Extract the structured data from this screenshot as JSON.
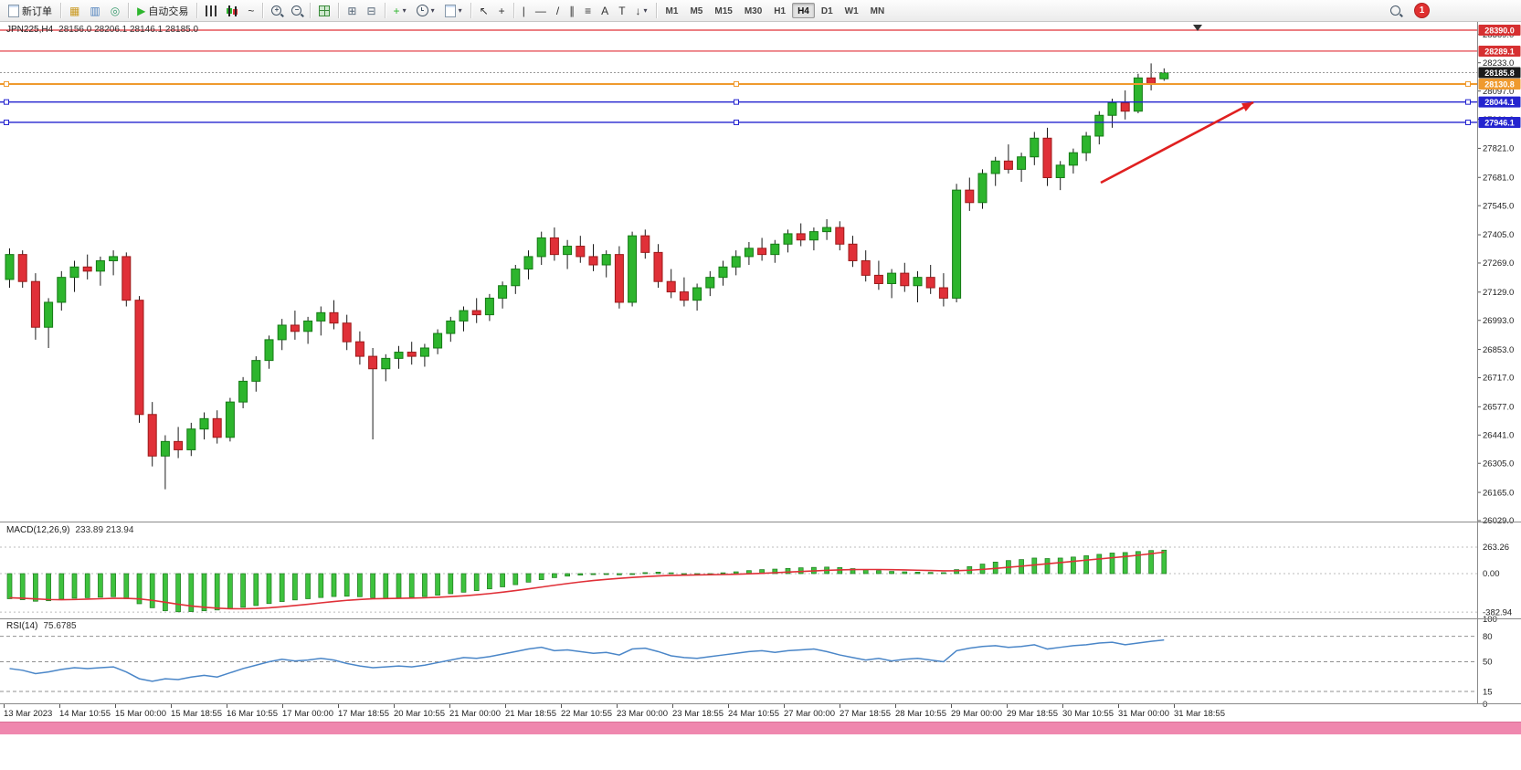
{
  "title": {
    "symbol": "JPN225,H4",
    "ohlc": "28156.0 28206.1 28146.1 28185.0"
  },
  "toolbar": {
    "groups": [
      {
        "items": [
          {
            "name": "new-order-button",
            "icon": "page",
            "label": "新订单"
          }
        ]
      },
      {
        "items": [
          {
            "name": "charts-button",
            "glyph": "▦",
            "color": "#c9981f"
          },
          {
            "name": "profiles-button",
            "glyph": "▥",
            "color": "#4a7ebb"
          },
          {
            "name": "data-window-button",
            "glyph": "◎",
            "color": "#3a9b6e"
          }
        ]
      },
      {
        "items": [
          {
            "name": "autotrading-button",
            "glyph": "▶",
            "color": "#2db52d",
            "label": "自动交易"
          }
        ]
      },
      {
        "items": [
          {
            "name": "bar-chart-button",
            "icon": "bars"
          },
          {
            "name": "candlestick-chart-button",
            "icon": "candles"
          },
          {
            "name": "line-chart-button",
            "glyph": "~",
            "color": "#333"
          }
        ]
      },
      {
        "items": [
          {
            "name": "zoom-in-button",
            "icon": "mag",
            "glyph": "+"
          },
          {
            "name": "zoom-out-button",
            "icon": "mag",
            "glyph": "−"
          }
        ]
      },
      {
        "items": [
          {
            "name": "tile-windows-button",
            "icon": "grid"
          }
        ]
      },
      {
        "items": [
          {
            "name": "auto-scroll-button",
            "glyph": "⊞",
            "color": "#556677"
          },
          {
            "name": "chart-shift-button",
            "glyph": "⊟",
            "color": "#556677"
          }
        ]
      },
      {
        "items": [
          {
            "name": "indicators-button",
            "glyph": "+",
            "color": "#2db52d",
            "caret": true
          },
          {
            "name": "periods-button",
            "icon": "clock",
            "caret": true
          },
          {
            "name": "templates-button",
            "icon": "page",
            "caret": true
          }
        ]
      },
      {
        "items": [
          {
            "name": "cursor-button",
            "glyph": "↖",
            "color": "#333"
          },
          {
            "name": "crosshair-button",
            "glyph": "+",
            "color": "#333"
          }
        ]
      },
      {
        "items": [
          {
            "name": "vertical-line-button",
            "glyph": "|",
            "color": "#333"
          },
          {
            "name": "horizontal-line-button",
            "glyph": "—",
            "color": "#333"
          },
          {
            "name": "trendline-button",
            "glyph": "/",
            "color": "#333"
          },
          {
            "name": "channel-button",
            "glyph": "∥",
            "color": "#333"
          },
          {
            "name": "fibonacci-button",
            "glyph": "≡",
            "color": "#333"
          },
          {
            "name": "text-button",
            "glyph": "A",
            "color": "#333"
          },
          {
            "name": "text-label-button",
            "glyph": "T",
            "color": "#333"
          },
          {
            "name": "arrows-button",
            "glyph": "↓",
            "color": "#333",
            "caret": true
          }
        ]
      }
    ],
    "timeframes": {
      "options": [
        "M1",
        "M5",
        "M15",
        "M30",
        "H1",
        "H4",
        "D1",
        "W1",
        "MN"
      ],
      "active": "H4"
    },
    "notification_count": "1"
  },
  "chart_data": {
    "type": "candlestick",
    "symbol": "JPN225",
    "timeframe": "H4",
    "title_symbol": "JPN225,H4",
    "title_ohlc": "28156.0 28206.1 28146.1 28185.0",
    "candles": [
      [
        27190,
        27340,
        27150,
        27310
      ],
      [
        27310,
        27330,
        27150,
        27180
      ],
      [
        27180,
        27220,
        26900,
        26960
      ],
      [
        26960,
        27100,
        26860,
        27080
      ],
      [
        27080,
        27230,
        27040,
        27200
      ],
      [
        27200,
        27280,
        27130,
        27250
      ],
      [
        27250,
        27310,
        27190,
        27230
      ],
      [
        27230,
        27300,
        27160,
        27280
      ],
      [
        27280,
        27330,
        27210,
        27300
      ],
      [
        27300,
        27320,
        27060,
        27090
      ],
      [
        27090,
        27110,
        26500,
        26540
      ],
      [
        26540,
        26600,
        26290,
        26340
      ],
      [
        26340,
        26440,
        26180,
        26410
      ],
      [
        26410,
        26480,
        26330,
        26370
      ],
      [
        26370,
        26500,
        26340,
        26470
      ],
      [
        26470,
        26550,
        26420,
        26520
      ],
      [
        26520,
        26560,
        26400,
        26430
      ],
      [
        26430,
        26620,
        26410,
        26600
      ],
      [
        26600,
        26720,
        26570,
        26700
      ],
      [
        26700,
        26820,
        26650,
        26800
      ],
      [
        26800,
        26920,
        26760,
        26900
      ],
      [
        26900,
        27000,
        26850,
        26970
      ],
      [
        26970,
        27040,
        26900,
        26940
      ],
      [
        26940,
        27010,
        26880,
        26990
      ],
      [
        26990,
        27060,
        26920,
        27030
      ],
      [
        27030,
        27090,
        26950,
        26980
      ],
      [
        26980,
        27020,
        26850,
        26890
      ],
      [
        26890,
        26940,
        26780,
        26820
      ],
      [
        26820,
        26860,
        26420,
        26760
      ],
      [
        26760,
        26830,
        26700,
        26810
      ],
      [
        26810,
        26870,
        26760,
        26840
      ],
      [
        26840,
        26890,
        26780,
        26820
      ],
      [
        26820,
        26880,
        26770,
        26860
      ],
      [
        26860,
        26950,
        26830,
        26930
      ],
      [
        26930,
        27010,
        26890,
        26990
      ],
      [
        26990,
        27060,
        26940,
        27040
      ],
      [
        27040,
        27100,
        26980,
        27020
      ],
      [
        27020,
        27120,
        26990,
        27100
      ],
      [
        27100,
        27180,
        27050,
        27160
      ],
      [
        27160,
        27260,
        27120,
        27240
      ],
      [
        27240,
        27330,
        27190,
        27300
      ],
      [
        27300,
        27420,
        27260,
        27390
      ],
      [
        27390,
        27440,
        27280,
        27310
      ],
      [
        27310,
        27380,
        27240,
        27350
      ],
      [
        27350,
        27400,
        27270,
        27300
      ],
      [
        27300,
        27360,
        27230,
        27260
      ],
      [
        27260,
        27330,
        27200,
        27310
      ],
      [
        27310,
        27350,
        27050,
        27080
      ],
      [
        27080,
        27420,
        27060,
        27400
      ],
      [
        27400,
        27430,
        27290,
        27320
      ],
      [
        27320,
        27360,
        27150,
        27180
      ],
      [
        27180,
        27240,
        27100,
        27130
      ],
      [
        27130,
        27200,
        27060,
        27090
      ],
      [
        27090,
        27170,
        27040,
        27150
      ],
      [
        27150,
        27230,
        27110,
        27200
      ],
      [
        27200,
        27280,
        27160,
        27250
      ],
      [
        27250,
        27330,
        27210,
        27300
      ],
      [
        27300,
        27370,
        27260,
        27340
      ],
      [
        27340,
        27390,
        27280,
        27310
      ],
      [
        27310,
        27380,
        27270,
        27360
      ],
      [
        27360,
        27430,
        27320,
        27410
      ],
      [
        27410,
        27460,
        27350,
        27380
      ],
      [
        27380,
        27440,
        27330,
        27420
      ],
      [
        27420,
        27480,
        27380,
        27440
      ],
      [
        27440,
        27470,
        27330,
        27360
      ],
      [
        27360,
        27400,
        27250,
        27280
      ],
      [
        27280,
        27330,
        27180,
        27210
      ],
      [
        27210,
        27280,
        27140,
        27170
      ],
      [
        27170,
        27240,
        27100,
        27220
      ],
      [
        27220,
        27270,
        27130,
        27160
      ],
      [
        27160,
        27230,
        27080,
        27200
      ],
      [
        27200,
        27260,
        27120,
        27150
      ],
      [
        27150,
        27220,
        27060,
        27100
      ],
      [
        27100,
        27650,
        27080,
        27620
      ],
      [
        27620,
        27680,
        27520,
        27560
      ],
      [
        27560,
        27720,
        27530,
        27700
      ],
      [
        27700,
        27780,
        27640,
        27760
      ],
      [
        27760,
        27840,
        27700,
        27720
      ],
      [
        27720,
        27800,
        27660,
        27780
      ],
      [
        27780,
        27900,
        27740,
        27870
      ],
      [
        27870,
        27920,
        27640,
        27680
      ],
      [
        27680,
        27760,
        27620,
        27740
      ],
      [
        27740,
        27820,
        27700,
        27800
      ],
      [
        27800,
        27900,
        27760,
        27880
      ],
      [
        27880,
        28000,
        27840,
        27980
      ],
      [
        27980,
        28060,
        27920,
        28040
      ],
      [
        28040,
        28100,
        27960,
        28000
      ],
      [
        28000,
        28180,
        27990,
        28160
      ],
      [
        28160,
        28230,
        28100,
        28130
      ],
      [
        28156,
        28206.1,
        28146.1,
        28185
      ]
    ],
    "price_axis": {
      "ticks": [
        28369.0,
        28233.0,
        28097.0,
        27961.0,
        27821.0,
        27681.0,
        27545.0,
        27405.0,
        27269.0,
        27129.0,
        26993.0,
        26853.0,
        26717.0,
        26577.0,
        26441.0,
        26305.0,
        26165.0,
        26029.0
      ]
    },
    "axis_badges": [
      {
        "label": "28390.0",
        "price": 28390.0,
        "color": "#d63031"
      },
      {
        "label": "28289.1",
        "price": 28289.1,
        "color": "#d63031"
      },
      {
        "label": "28185.8",
        "price": 28185.8,
        "color": "#1b1b1b"
      },
      {
        "label": "28130.8",
        "price": 28130.8,
        "color": "#ef9a2e"
      },
      {
        "label": "28044.1",
        "price": 28044.1,
        "color": "#2424cf"
      },
      {
        "label": "27946.1",
        "price": 27946.1,
        "color": "#2424cf"
      }
    ],
    "hlines": [
      {
        "price": 28390.0,
        "color": "#e03038",
        "width": 1.2,
        "style": "solid"
      },
      {
        "price": 28289.1,
        "color": "#e03038",
        "width": 1.2,
        "style": "solid"
      },
      {
        "price": 28185.8,
        "color": "#9a9a9a",
        "width": 1,
        "style": "dotted"
      },
      {
        "price": 28130.8,
        "color": "#ef9a2e",
        "width": 2,
        "style": "solid",
        "handles": true
      },
      {
        "price": 28044.1,
        "color": "#2424cf",
        "width": 1.4,
        "style": "solid",
        "handles": true
      },
      {
        "price": 27946.1,
        "color": "#2424cf",
        "width": 1.4,
        "style": "solid",
        "handles": true
      }
    ],
    "arrow": {
      "from": [
        1205,
        200
      ],
      "to": [
        1372,
        112
      ],
      "color": "#e02020"
    },
    "macd": {
      "label": "MACD(12,26,9)",
      "values_text": "233.89 213.94",
      "histogram": [
        -250,
        -260,
        -275,
        -270,
        -255,
        -245,
        -240,
        -235,
        -230,
        -250,
        -300,
        -340,
        -370,
        -380,
        -378,
        -370,
        -362,
        -350,
        -335,
        -318,
        -298,
        -278,
        -262,
        -250,
        -238,
        -228,
        -225,
        -230,
        -240,
        -245,
        -242,
        -236,
        -228,
        -215,
        -200,
        -185,
        -170,
        -152,
        -132,
        -110,
        -85,
        -60,
        -40,
        -25,
        -15,
        -10,
        -8,
        -12,
        -5,
        10,
        15,
        8,
        0,
        -5,
        0,
        8,
        18,
        30,
        40,
        45,
        52,
        58,
        62,
        65,
        60,
        50,
        40,
        30,
        22,
        18,
        15,
        12,
        10,
        40,
        70,
        95,
        115,
        130,
        140,
        155,
        150,
        155,
        165,
        178,
        192,
        205,
        210,
        220,
        230,
        233.89
      ],
      "signal": [
        -240,
        -245,
        -252,
        -258,
        -260,
        -258,
        -254,
        -250,
        -246,
        -246,
        -252,
        -266,
        -285,
        -305,
        -322,
        -335,
        -344,
        -349,
        -350,
        -347,
        -340,
        -330,
        -318,
        -305,
        -291,
        -278,
        -266,
        -257,
        -251,
        -248,
        -246,
        -244,
        -241,
        -236,
        -229,
        -221,
        -211,
        -199,
        -185,
        -169,
        -152,
        -134,
        -116,
        -99,
        -83,
        -69,
        -57,
        -47,
        -38,
        -30,
        -23,
        -18,
        -15,
        -13,
        -11,
        -9,
        -6,
        -2,
        3,
        9,
        15,
        21,
        27,
        33,
        37,
        40,
        41,
        41,
        39,
        37,
        34,
        31,
        28,
        29,
        34,
        42,
        52,
        63,
        74,
        86,
        98,
        110,
        122,
        134,
        146,
        158,
        170,
        183,
        198,
        213.94
      ],
      "scale": [
        {
          "label": "263.26",
          "value": 263.26
        },
        {
          "label": "0.00",
          "value": 0
        },
        {
          "label": "-382.94",
          "value": -382.94
        }
      ]
    },
    "rsi": {
      "label": "RSI(14)",
      "value_text": "75.6785",
      "series": [
        42,
        40,
        36,
        38,
        41,
        43,
        42,
        43,
        44,
        38,
        30,
        27,
        30,
        29,
        32,
        34,
        32,
        37,
        42,
        46,
        50,
        53,
        51,
        52,
        54,
        52,
        48,
        45,
        43,
        44,
        45,
        44,
        46,
        49,
        52,
        55,
        54,
        56,
        59,
        62,
        65,
        67,
        63,
        64,
        62,
        60,
        61,
        58,
        65,
        66,
        62,
        57,
        55,
        54,
        56,
        58,
        60,
        62,
        63,
        61,
        63,
        64,
        65,
        62,
        58,
        55,
        52,
        54,
        51,
        53,
        54,
        52,
        50,
        63,
        66,
        68,
        69,
        67,
        68,
        70,
        65,
        67,
        69,
        70,
        72,
        73,
        70,
        72,
        74,
        75.68
      ],
      "scale": [
        {
          "label": "100",
          "value": 100
        },
        {
          "label": "80",
          "value": 80
        },
        {
          "label": "50",
          "value": 50
        },
        {
          "label": "15",
          "value": 15
        },
        {
          "label": "0",
          "value": 0
        }
      ],
      "levels": [
        80,
        50,
        15
      ]
    },
    "time_labels": [
      "13 Mar 2023",
      "14 Mar 10:55",
      "15 Mar 00:00",
      "15 Mar 18:55",
      "16 Mar 10:55",
      "17 Mar 00:00",
      "17 Mar 18:55",
      "20 Mar 10:55",
      "21 Mar 00:00",
      "21 Mar 18:55",
      "22 Mar 10:55",
      "23 Mar 00:00",
      "23 Mar 18:55",
      "24 Mar 10:55",
      "27 Mar 00:00",
      "27 Mar 18:55",
      "28 Mar 10:55",
      "29 Mar 00:00",
      "29 Mar 18:55",
      "30 Mar 10:55",
      "31 Mar 00:00",
      "31 Mar 18:55"
    ]
  }
}
